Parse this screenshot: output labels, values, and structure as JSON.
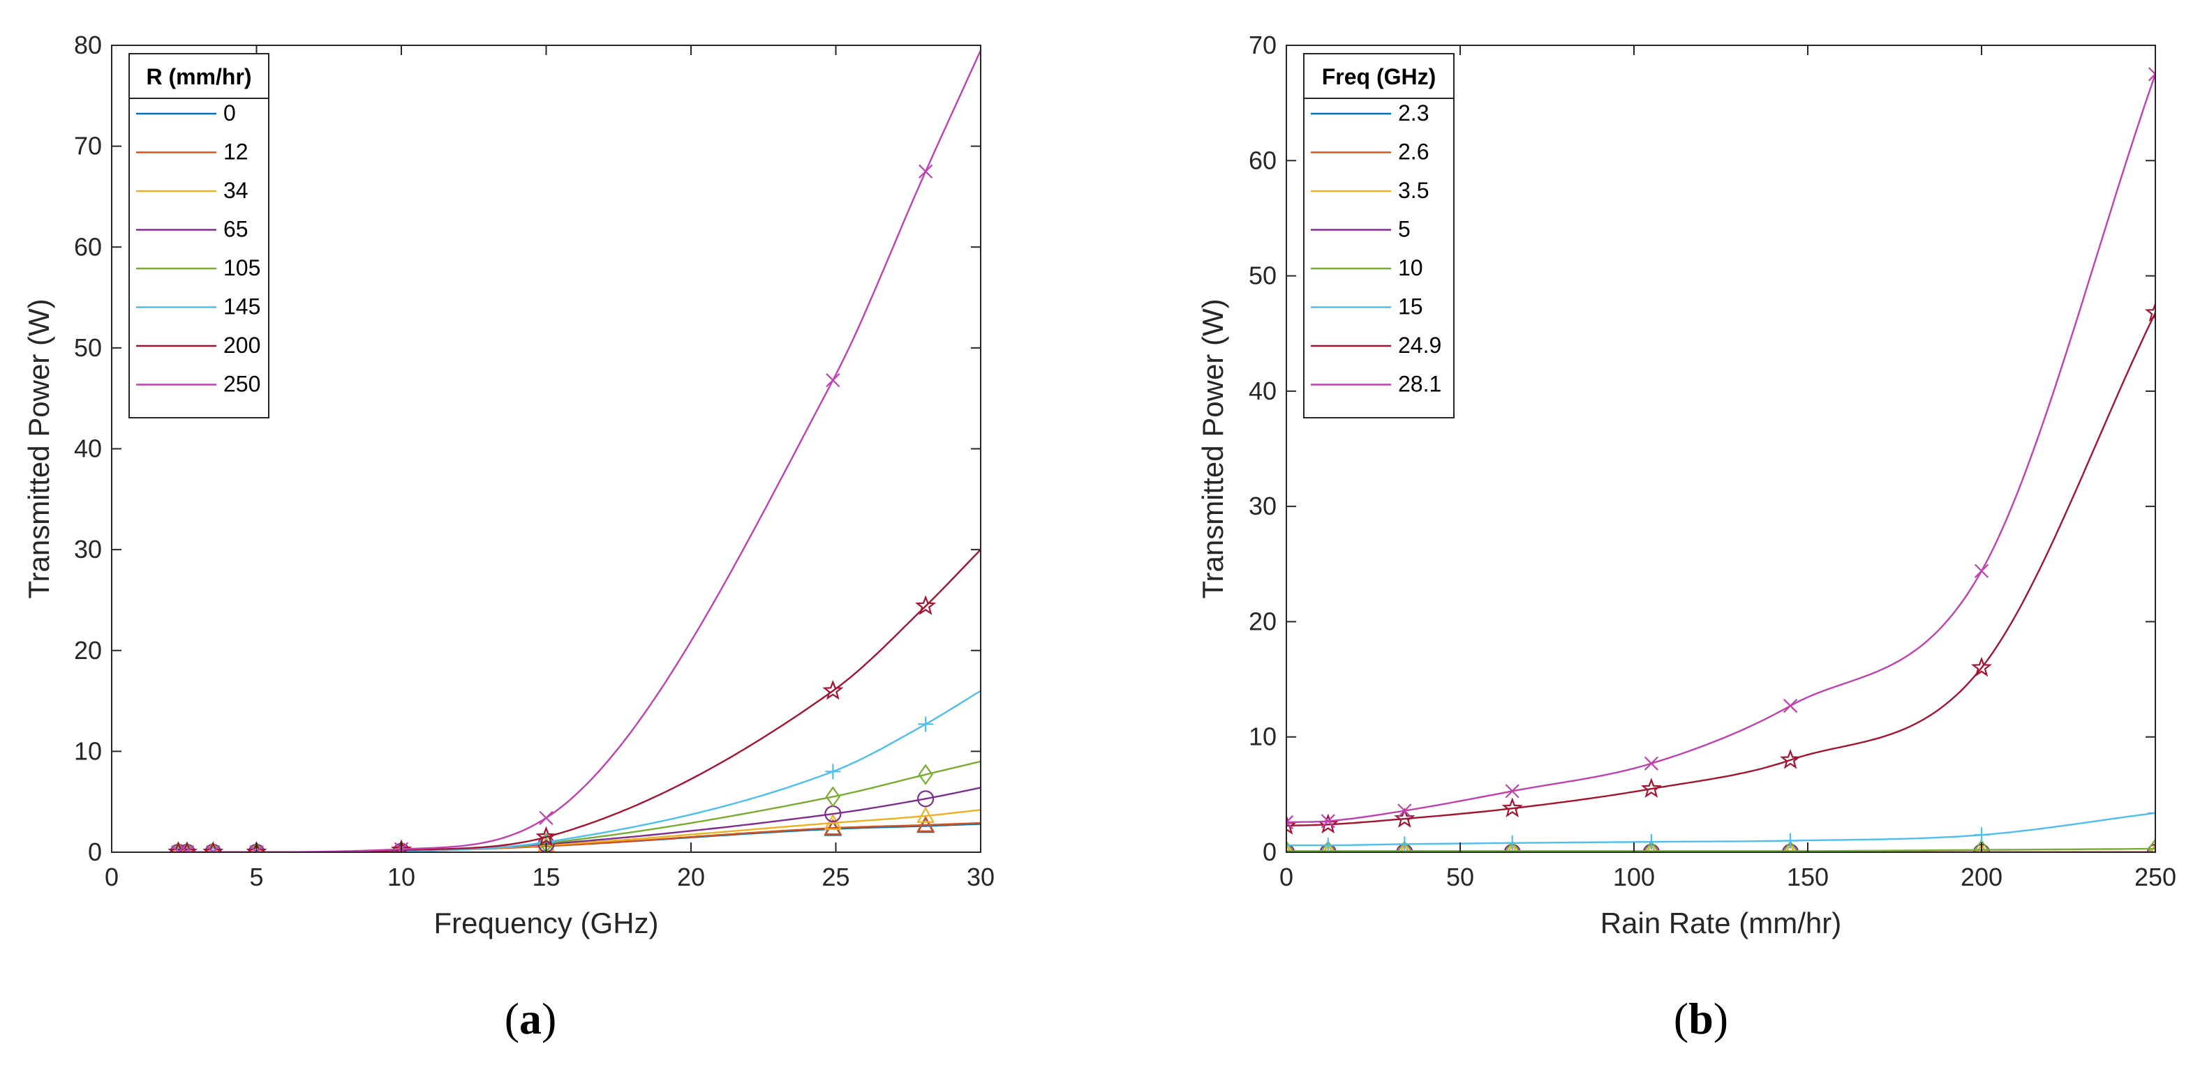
{
  "chart_data": [
    {
      "type": "line",
      "panel": "a",
      "caption_letter": "a",
      "xlabel": "Frequency (GHz)",
      "ylabel": "Transmitted Power (W)",
      "xlim": [
        0,
        30
      ],
      "ylim": [
        0,
        80
      ],
      "xticks": [
        0,
        5,
        10,
        15,
        20,
        25,
        30
      ],
      "yticks": [
        0,
        10,
        20,
        30,
        40,
        50,
        60,
        70,
        80
      ],
      "grid": false,
      "legend_title": "R (mm/hr)",
      "legend_position": "top-left",
      "series": [
        {
          "name": "0",
          "color": "#0072BD",
          "marker": "triangle",
          "x": [
            2.3,
            2.6,
            3.5,
            5,
            10,
            15,
            24.9,
            28.1,
            30
          ],
          "y": [
            0,
            0,
            0,
            0,
            0.1,
            0.6,
            2.3,
            2.6,
            2.8
          ]
        },
        {
          "name": "12",
          "color": "#D95319",
          "marker": "triangle",
          "x": [
            2.3,
            2.6,
            3.5,
            5,
            10,
            15,
            24.9,
            28.1,
            30
          ],
          "y": [
            0,
            0,
            0,
            0,
            0.1,
            0.6,
            2.4,
            2.7,
            2.9
          ]
        },
        {
          "name": "34",
          "color": "#EDB120",
          "marker": "triangle",
          "x": [
            2.3,
            2.6,
            3.5,
            5,
            10,
            15,
            24.9,
            28.1,
            30
          ],
          "y": [
            0,
            0,
            0,
            0,
            0.1,
            0.7,
            2.9,
            3.6,
            4.2
          ]
        },
        {
          "name": "65",
          "color": "#7E2F8E",
          "marker": "circle",
          "x": [
            2.3,
            2.6,
            3.5,
            5,
            10,
            15,
            24.9,
            28.1,
            30
          ],
          "y": [
            0,
            0,
            0,
            0,
            0.1,
            0.8,
            3.8,
            5.3,
            6.4
          ]
        },
        {
          "name": "105",
          "color": "#77AC30",
          "marker": "diamond",
          "x": [
            2.3,
            2.6,
            3.5,
            5,
            10,
            15,
            24.9,
            28.1,
            30
          ],
          "y": [
            0,
            0,
            0,
            0,
            0.1,
            0.9,
            5.5,
            7.7,
            9.0
          ]
        },
        {
          "name": "145",
          "color": "#4DBEEE",
          "marker": "plus",
          "x": [
            2.3,
            2.6,
            3.5,
            5,
            10,
            15,
            24.9,
            28.1,
            30
          ],
          "y": [
            0,
            0,
            0,
            0,
            0.1,
            1.0,
            8.0,
            12.7,
            16.0
          ]
        },
        {
          "name": "200",
          "color": "#A2142F",
          "marker": "star",
          "x": [
            2.3,
            2.6,
            3.5,
            5,
            10,
            15,
            24.9,
            28.1,
            30
          ],
          "y": [
            0,
            0,
            0,
            0,
            0.2,
            1.5,
            16.0,
            24.4,
            30.0
          ]
        },
        {
          "name": "250",
          "color": "#C040B0",
          "marker": "x",
          "x": [
            2.3,
            2.6,
            3.5,
            5,
            10,
            15,
            24.9,
            28.1,
            30
          ],
          "y": [
            0,
            0,
            0,
            0,
            0.3,
            3.4,
            46.8,
            67.5,
            79.5
          ]
        }
      ]
    },
    {
      "type": "line",
      "panel": "b",
      "caption_letter": "b",
      "xlabel": "Rain Rate (mm/hr)",
      "ylabel": "Transmitted Power (W)",
      "xlim": [
        0,
        250
      ],
      "ylim": [
        0,
        70
      ],
      "xticks": [
        0,
        50,
        100,
        150,
        200,
        250
      ],
      "yticks": [
        0,
        10,
        20,
        30,
        40,
        50,
        60,
        70
      ],
      "grid": false,
      "legend_title": "Freq (GHz)",
      "legend_position": "top-left",
      "series": [
        {
          "name": "2.3",
          "color": "#0072BD",
          "marker": "triangle",
          "x": [
            0,
            12,
            34,
            65,
            105,
            145,
            200,
            250
          ],
          "y": [
            0,
            0,
            0,
            0,
            0,
            0,
            0,
            0
          ]
        },
        {
          "name": "2.6",
          "color": "#D95319",
          "marker": "triangle",
          "x": [
            0,
            12,
            34,
            65,
            105,
            145,
            200,
            250
          ],
          "y": [
            0,
            0,
            0,
            0,
            0,
            0,
            0,
            0
          ]
        },
        {
          "name": "3.5",
          "color": "#EDB120",
          "marker": "triangle",
          "x": [
            0,
            12,
            34,
            65,
            105,
            145,
            200,
            250
          ],
          "y": [
            0,
            0,
            0,
            0,
            0,
            0,
            0,
            0
          ]
        },
        {
          "name": "5",
          "color": "#7E2F8E",
          "marker": "circle",
          "x": [
            0,
            12,
            34,
            65,
            105,
            145,
            200,
            250
          ],
          "y": [
            0,
            0,
            0,
            0,
            0,
            0,
            0,
            0
          ]
        },
        {
          "name": "10",
          "color": "#77AC30",
          "marker": "diamond",
          "x": [
            0,
            12,
            34,
            65,
            105,
            145,
            200,
            250
          ],
          "y": [
            0.1,
            0.1,
            0.1,
            0.1,
            0.1,
            0.1,
            0.2,
            0.3
          ]
        },
        {
          "name": "15",
          "color": "#4DBEEE",
          "marker": "plus",
          "x": [
            0,
            12,
            34,
            65,
            105,
            145,
            200,
            250
          ],
          "y": [
            0.6,
            0.6,
            0.7,
            0.8,
            0.9,
            1.0,
            1.5,
            3.4
          ]
        },
        {
          "name": "24.9",
          "color": "#A2142F",
          "marker": "star",
          "x": [
            0,
            12,
            34,
            65,
            105,
            145,
            200,
            250
          ],
          "y": [
            2.3,
            2.4,
            2.9,
            3.8,
            5.5,
            8.0,
            16.0,
            46.8
          ]
        },
        {
          "name": "28.1",
          "color": "#C040B0",
          "marker": "x",
          "x": [
            0,
            12,
            34,
            65,
            105,
            145,
            200,
            250
          ],
          "y": [
            2.6,
            2.7,
            3.6,
            5.3,
            7.7,
            12.7,
            24.4,
            67.5
          ]
        }
      ]
    }
  ]
}
